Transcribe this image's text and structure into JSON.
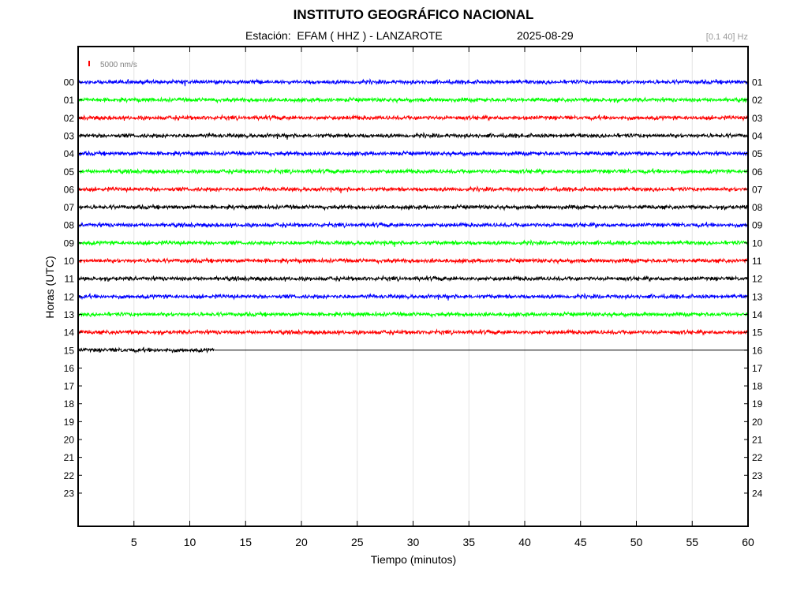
{
  "header": {
    "title": "INSTITUTO GEOGRÁFICO NACIONAL",
    "station": "Estación:  EFAM ( HHZ ) - LANZAROTE",
    "date": "2025-08-29",
    "filter": "[0.1 40] Hz"
  },
  "chart_data": {
    "type": "line",
    "title": "INSTITUTO GEOGRÁFICO NACIONAL",
    "xlabel": "Tiempo (minutos)",
    "ylabel": "Horas (UTC)",
    "xlim": [
      0,
      60
    ],
    "x_ticks": [
      5,
      10,
      15,
      20,
      25,
      30,
      35,
      40,
      45,
      50,
      55,
      60
    ],
    "left_hour_labels": [
      "00",
      "01",
      "02",
      "03",
      "04",
      "05",
      "06",
      "07",
      "08",
      "09",
      "10",
      "11",
      "12",
      "13",
      "14",
      "15",
      "16",
      "17",
      "18",
      "19",
      "20",
      "21",
      "22",
      "23"
    ],
    "right_hour_labels": [
      "01",
      "02",
      "03",
      "04",
      "05",
      "06",
      "07",
      "08",
      "09",
      "10",
      "11",
      "12",
      "13",
      "14",
      "15",
      "16",
      "17",
      "18",
      "19",
      "20",
      "21",
      "22",
      "23",
      "24"
    ],
    "grid": true,
    "scale_bar": {
      "label": "5000 nm/s",
      "color": "#ff0000"
    },
    "trace_colors": [
      "#0000ff",
      "#00ff00",
      "#ff0000",
      "#000000"
    ],
    "traces": [
      {
        "hour": "00",
        "end_minute": 60
      },
      {
        "hour": "01",
        "end_minute": 60
      },
      {
        "hour": "02",
        "end_minute": 60
      },
      {
        "hour": "03",
        "end_minute": 60
      },
      {
        "hour": "04",
        "end_minute": 60
      },
      {
        "hour": "05",
        "end_minute": 60
      },
      {
        "hour": "06",
        "end_minute": 60
      },
      {
        "hour": "07",
        "end_minute": 60
      },
      {
        "hour": "08",
        "end_minute": 60
      },
      {
        "hour": "09",
        "end_minute": 60
      },
      {
        "hour": "10",
        "end_minute": 60
      },
      {
        "hour": "11",
        "end_minute": 60
      },
      {
        "hour": "12",
        "end_minute": 60
      },
      {
        "hour": "13",
        "end_minute": 60
      },
      {
        "hour": "14",
        "end_minute": 60
      },
      {
        "hour": "15",
        "end_minute": 12.2
      }
    ]
  }
}
